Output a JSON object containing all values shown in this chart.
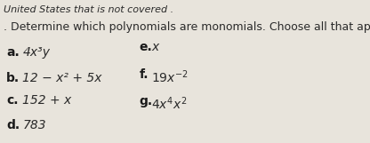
{
  "bg_color": "#e8e4dc",
  "top_text": "United States that is not covered .",
  "main_question": ". Determine which polynomials are monomials. Choose all that apply.",
  "items_left": [
    {
      "label": "a.",
      "expr": "4x³y"
    },
    {
      "label": "b.",
      "expr": "12 − x² + 5x"
    },
    {
      "label": "c.",
      "expr": "152 + x"
    },
    {
      "label": "d.",
      "expr": "783"
    }
  ],
  "items_right": [
    {
      "label": "e.",
      "expr_parts": [
        {
          "text": "x",
          "style": "normal"
        }
      ]
    },
    {
      "label": "f.",
      "expr_parts": [
        {
          "text": "19x",
          "style": "normal"
        },
        {
          "text": "−2",
          "style": "superscript"
        }
      ]
    },
    {
      "label": "g.",
      "expr_parts": [
        {
          "text": "4x⁴x²",
          "style": "normal"
        }
      ]
    }
  ],
  "font_size_top": 8,
  "font_size_question": 9,
  "font_size_items": 10,
  "text_color": "#2a2a2a",
  "label_color": "#1a1a1a"
}
